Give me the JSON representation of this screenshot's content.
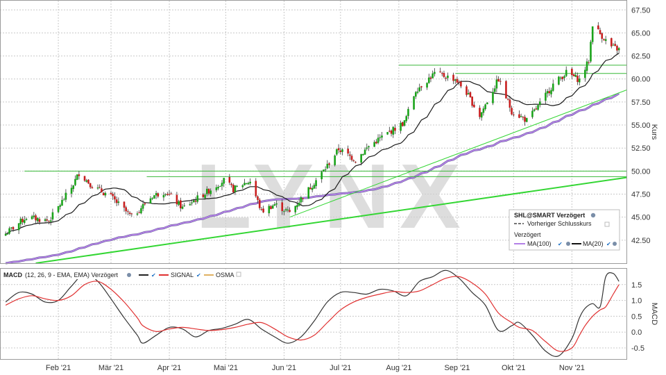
{
  "watermark": "LYNX",
  "colors": {
    "up": "#1aa31a",
    "down": "#c81e1e",
    "wick": "#333333",
    "ma20": "#1a1a1a",
    "ma100": "#b37fe6",
    "ma100_edge": "#5a5a8a",
    "trend": "#33d633",
    "hline": "#37b837",
    "macd": "#333333",
    "signal": "#e03030",
    "osma": "#e0b060",
    "watermark": "#cfcfcf"
  },
  "legend": {
    "title": "SHL@SMART Verzögert",
    "prev_close": "Vorheriger Schlusskurs",
    "delayed": "Verzögert",
    "ma100": "MA(100)",
    "ma20": "MA(20)"
  },
  "macd_header": {
    "name": "MACD",
    "params": "(12, 26, 9 - EMA, EMA) Verzögert",
    "signal": "SIGNAL",
    "osma": "OSMA"
  },
  "chart_data": [
    {
      "type": "candlestick",
      "ylabel": "Kurs",
      "ylim": [
        40.0,
        68.5
      ],
      "yticks": [
        "42.50",
        "45.00",
        "47.50",
        "50.00",
        "52.50",
        "55.00",
        "57.50",
        "60.00",
        "62.50",
        "65.00",
        "67.50"
      ],
      "x_labels": [
        "Feb '21",
        "Mär '21",
        "Apr '21",
        "Mai '21",
        "Jun '21",
        "Jul '21",
        "Aug '21",
        "Sep '21",
        "Okt '21",
        "Nov '21"
      ],
      "date_range": [
        "2021-01-04",
        "2021-11-26"
      ],
      "grid": true,
      "legend_position": "bottom-right",
      "close_anchors": [
        [
          "2021-01-04",
          43.2
        ],
        [
          "2021-01-15",
          45.0
        ],
        [
          "2021-01-27",
          44.6
        ],
        [
          "2021-02-08",
          48.2
        ],
        [
          "2021-02-12",
          49.8
        ],
        [
          "2021-02-19",
          48.4
        ],
        [
          "2021-03-01",
          47.2
        ],
        [
          "2021-03-12",
          45.0
        ],
        [
          "2021-03-23",
          47.3
        ],
        [
          "2021-03-30",
          47.8
        ],
        [
          "2021-04-08",
          46.0
        ],
        [
          "2021-04-20",
          47.6
        ],
        [
          "2021-04-30",
          49.0
        ],
        [
          "2021-05-05",
          48.0
        ],
        [
          "2021-05-11",
          48.7
        ],
        [
          "2021-05-14",
          48.9
        ],
        [
          "2021-05-20",
          45.6
        ],
        [
          "2021-05-27",
          46.4
        ],
        [
          "2021-06-04",
          45.5
        ],
        [
          "2021-06-16",
          48.5
        ],
        [
          "2021-06-23",
          50.3
        ],
        [
          "2021-06-30",
          52.4
        ],
        [
          "2021-07-09",
          51.2
        ],
        [
          "2021-07-16",
          52.7
        ],
        [
          "2021-07-23",
          53.7
        ],
        [
          "2021-08-04",
          55.3
        ],
        [
          "2021-08-10",
          58.8
        ],
        [
          "2021-08-20",
          60.6
        ],
        [
          "2021-08-31",
          60.0
        ],
        [
          "2021-09-06",
          58.5
        ],
        [
          "2021-09-13",
          56.0
        ],
        [
          "2021-09-23",
          60.0
        ],
        [
          "2021-09-30",
          56.5
        ],
        [
          "2021-10-08",
          55.5
        ],
        [
          "2021-10-14",
          57.0
        ],
        [
          "2021-10-22",
          59.4
        ],
        [
          "2021-10-29",
          60.7
        ],
        [
          "2021-11-05",
          59.9
        ],
        [
          "2021-11-10",
          62.0
        ],
        [
          "2021-11-12",
          66.0
        ],
        [
          "2021-11-16",
          64.9
        ],
        [
          "2021-11-22",
          63.5
        ],
        [
          "2021-11-26",
          63.2
        ]
      ],
      "moving_averages": [
        {
          "name": "MA(20)",
          "period": 20
        },
        {
          "name": "MA(100)",
          "period": 100
        }
      ],
      "horizontal_lines": [
        {
          "y": 50.0,
          "from": "2021-01-14",
          "to": "2021-11-30"
        },
        {
          "y": 49.4,
          "from": "2021-03-20",
          "to": "2021-11-30"
        },
        {
          "y": 61.5,
          "from": "2021-08-01",
          "to": "2021-11-30"
        },
        {
          "y": 60.6,
          "from": "2021-08-31",
          "to": "2021-11-30"
        }
      ],
      "trendlines": [
        {
          "from": [
            "2021-01-20",
            40.0
          ],
          "to": [
            "2021-11-30",
            49.3
          ],
          "weight": "thick"
        },
        {
          "from": [
            "2021-06-04",
            45.0
          ],
          "to": [
            "2021-11-30",
            58.8
          ],
          "weight": "thin"
        }
      ]
    },
    {
      "type": "line",
      "ylabel": "MACD",
      "ylim": [
        -0.85,
        2.0
      ],
      "yticks": [
        "-0.5",
        "0.0",
        "0.5",
        "1.0",
        "1.5"
      ],
      "series": [
        {
          "name": "MACD",
          "points": [
            [
              "2021-01-04",
              0.95
            ],
            [
              "2021-01-11",
              1.25
            ],
            [
              "2021-01-18",
              1.2
            ],
            [
              "2021-01-25",
              0.95
            ],
            [
              "2021-02-01",
              1.0
            ],
            [
              "2021-02-08",
              1.45
            ],
            [
              "2021-02-15",
              1.85
            ],
            [
              "2021-02-22",
              1.6
            ],
            [
              "2021-03-01",
              1.05
            ],
            [
              "2021-03-08",
              0.45
            ],
            [
              "2021-03-15",
              -0.1
            ],
            [
              "2021-03-18",
              -0.35
            ],
            [
              "2021-03-25",
              -0.1
            ],
            [
              "2021-04-01",
              0.15
            ],
            [
              "2021-04-08",
              0.1
            ],
            [
              "2021-04-15",
              -0.15
            ],
            [
              "2021-04-22",
              0.05
            ],
            [
              "2021-04-29",
              0.12
            ],
            [
              "2021-05-06",
              0.25
            ],
            [
              "2021-05-13",
              0.4
            ],
            [
              "2021-05-20",
              0.1
            ],
            [
              "2021-05-27",
              -0.15
            ],
            [
              "2021-06-03",
              -0.35
            ],
            [
              "2021-06-10",
              -0.15
            ],
            [
              "2021-06-17",
              0.35
            ],
            [
              "2021-06-24",
              0.95
            ],
            [
              "2021-07-01",
              1.25
            ],
            [
              "2021-07-08",
              1.25
            ],
            [
              "2021-07-15",
              1.2
            ],
            [
              "2021-07-22",
              1.35
            ],
            [
              "2021-07-29",
              1.3
            ],
            [
              "2021-08-05",
              1.15
            ],
            [
              "2021-08-12",
              1.6
            ],
            [
              "2021-08-19",
              1.75
            ],
            [
              "2021-08-26",
              1.95
            ],
            [
              "2021-09-02",
              1.7
            ],
            [
              "2021-09-09",
              1.25
            ],
            [
              "2021-09-16",
              0.85
            ],
            [
              "2021-09-23",
              0.05
            ],
            [
              "2021-09-30",
              0.2
            ],
            [
              "2021-10-04",
              0.3
            ],
            [
              "2021-10-11",
              -0.1
            ],
            [
              "2021-10-18",
              -0.6
            ],
            [
              "2021-10-25",
              -0.75
            ],
            [
              "2021-11-01",
              -0.2
            ],
            [
              "2021-11-05",
              0.45
            ],
            [
              "2021-11-08",
              0.75
            ],
            [
              "2021-11-12",
              0.9
            ],
            [
              "2021-11-16",
              0.8
            ],
            [
              "2021-11-19",
              1.75
            ],
            [
              "2021-11-23",
              1.85
            ],
            [
              "2021-11-26",
              1.6
            ]
          ]
        },
        {
          "name": "SIGNAL",
          "points": [
            [
              "2021-01-04",
              0.85
            ],
            [
              "2021-01-11",
              1.05
            ],
            [
              "2021-01-18",
              1.15
            ],
            [
              "2021-01-25",
              1.05
            ],
            [
              "2021-02-01",
              1.0
            ],
            [
              "2021-02-08",
              1.15
            ],
            [
              "2021-02-15",
              1.5
            ],
            [
              "2021-02-22",
              1.6
            ],
            [
              "2021-03-01",
              1.35
            ],
            [
              "2021-03-08",
              0.95
            ],
            [
              "2021-03-15",
              0.45
            ],
            [
              "2021-03-18",
              0.2
            ],
            [
              "2021-03-25",
              0.02
            ],
            [
              "2021-04-01",
              0.1
            ],
            [
              "2021-04-08",
              0.15
            ],
            [
              "2021-04-15",
              0.1
            ],
            [
              "2021-04-22",
              0.05
            ],
            [
              "2021-04-29",
              0.08
            ],
            [
              "2021-05-06",
              0.15
            ],
            [
              "2021-05-13",
              0.25
            ],
            [
              "2021-05-20",
              0.3
            ],
            [
              "2021-05-27",
              0.1
            ],
            [
              "2021-06-03",
              -0.15
            ],
            [
              "2021-06-10",
              -0.25
            ],
            [
              "2021-06-17",
              -0.1
            ],
            [
              "2021-06-24",
              0.3
            ],
            [
              "2021-07-01",
              0.7
            ],
            [
              "2021-07-08",
              0.95
            ],
            [
              "2021-07-15",
              1.1
            ],
            [
              "2021-07-22",
              1.2
            ],
            [
              "2021-07-29",
              1.28
            ],
            [
              "2021-08-05",
              1.25
            ],
            [
              "2021-08-12",
              1.3
            ],
            [
              "2021-08-19",
              1.5
            ],
            [
              "2021-08-26",
              1.7
            ],
            [
              "2021-09-02",
              1.75
            ],
            [
              "2021-09-09",
              1.55
            ],
            [
              "2021-09-16",
              1.2
            ],
            [
              "2021-09-23",
              0.6
            ],
            [
              "2021-09-30",
              0.3
            ],
            [
              "2021-10-04",
              0.15
            ],
            [
              "2021-10-11",
              0.05
            ],
            [
              "2021-10-18",
              -0.3
            ],
            [
              "2021-10-25",
              -0.6
            ],
            [
              "2021-11-01",
              -0.5
            ],
            [
              "2021-11-05",
              -0.1
            ],
            [
              "2021-11-08",
              0.2
            ],
            [
              "2021-11-12",
              0.5
            ],
            [
              "2021-11-16",
              0.7
            ],
            [
              "2021-11-19",
              0.8
            ],
            [
              "2021-11-23",
              1.2
            ],
            [
              "2021-11-26",
              1.5
            ]
          ]
        }
      ]
    }
  ]
}
